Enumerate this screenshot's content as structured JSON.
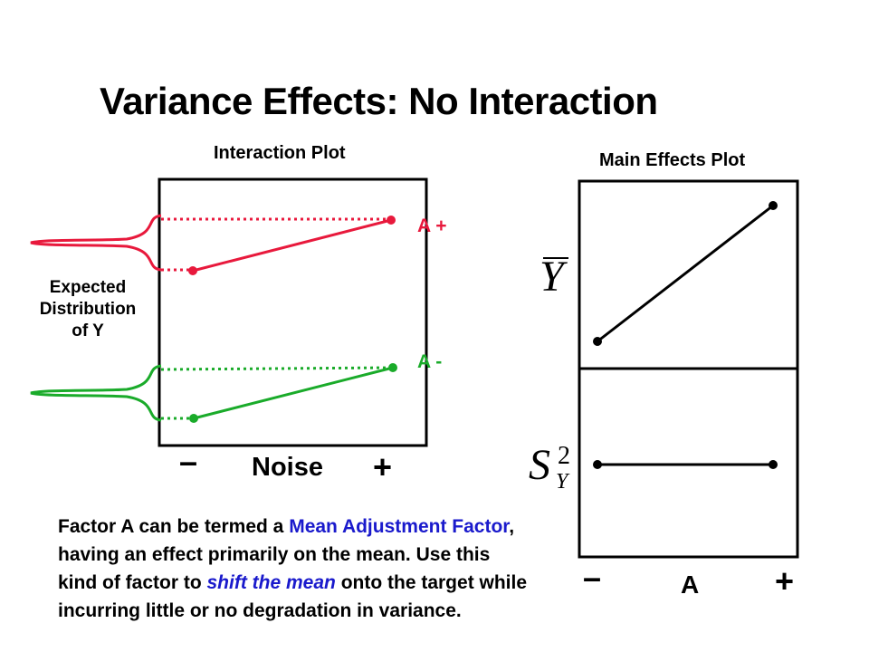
{
  "title": "Variance Effects: No Interaction",
  "interaction_plot": {
    "title": "Interaction Plot",
    "distribution_label": [
      "Expected",
      "Distribution",
      "of Y"
    ],
    "series": [
      {
        "name": "A +",
        "color": "#e8193c"
      },
      {
        "name": "A -",
        "color": "#1aab2a"
      }
    ],
    "x_axis": {
      "minus": "–",
      "label": "Noise",
      "plus": "+"
    }
  },
  "main_effects_plot": {
    "title": "Main Effects Plot",
    "upper_y_label": "Y",
    "lower_y_label": {
      "base": "S",
      "superscript": "2",
      "subscript": "Y"
    },
    "x_axis": {
      "minus": "–",
      "label": "A",
      "plus": "+"
    }
  },
  "description": {
    "part1": "Factor A can be termed a ",
    "highlight1": "Mean Adjustment Factor",
    "part2": ", having an effect primarily on the mean.  Use this kind of factor to ",
    "highlight2": "shift the mean",
    "part3": " onto the target while incurring little or no degradation in variance."
  },
  "colors": {
    "red": "#e8193c",
    "green": "#1aab2a",
    "blue": "#1a1acc",
    "line": "#000000"
  }
}
